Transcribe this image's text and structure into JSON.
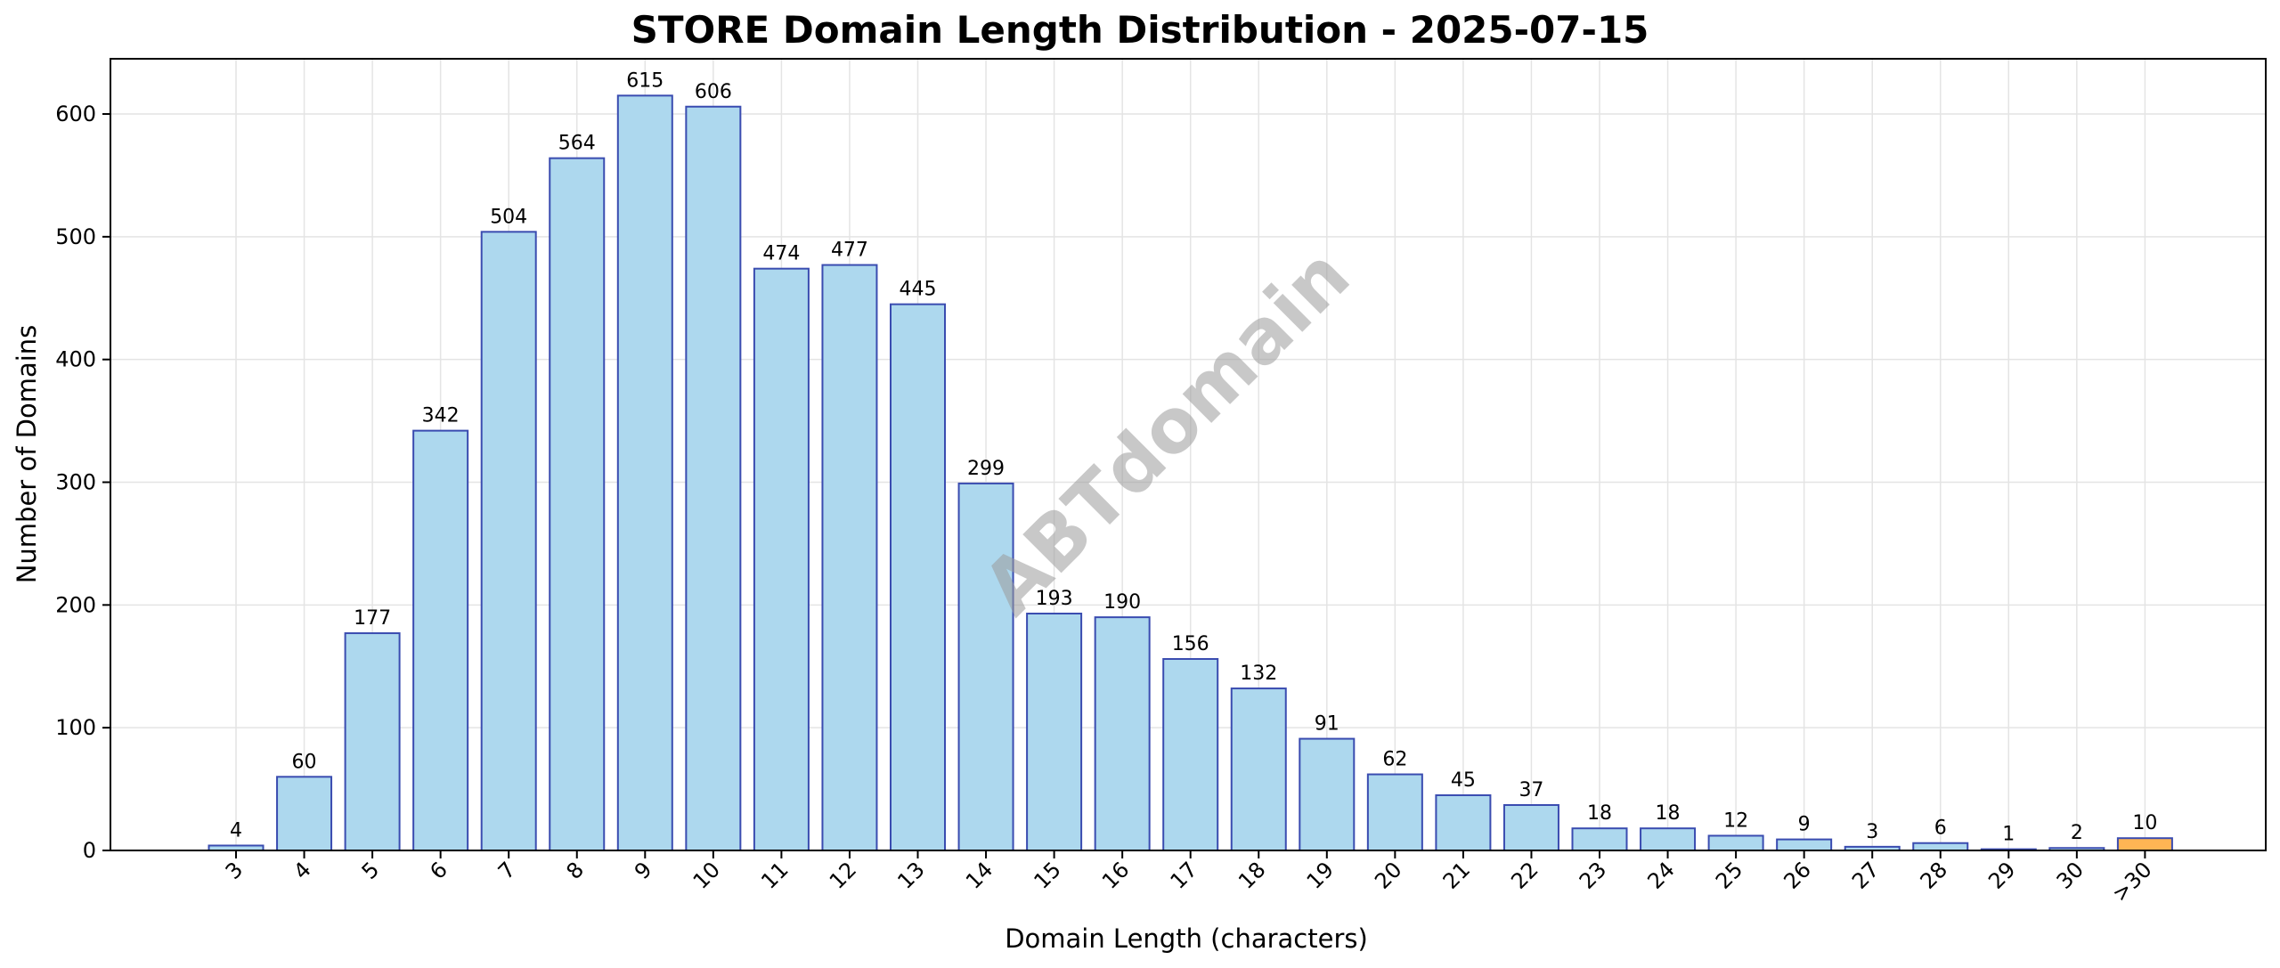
{
  "chart_data": {
    "type": "bar",
    "title": "STORE Domain Length Distribution - 2025-07-15",
    "xlabel": "Domain Length (characters)",
    "ylabel": "Number of Domains",
    "categories": [
      "3",
      "4",
      "5",
      "6",
      "7",
      "8",
      "9",
      "10",
      "11",
      "12",
      "13",
      "14",
      "15",
      "16",
      "17",
      "18",
      "19",
      "20",
      "21",
      "22",
      "23",
      "24",
      "25",
      "26",
      "27",
      "28",
      "29",
      "30",
      ">30"
    ],
    "values": [
      4,
      60,
      177,
      342,
      504,
      564,
      615,
      606,
      474,
      477,
      445,
      299,
      193,
      190,
      156,
      132,
      91,
      62,
      45,
      37,
      18,
      18,
      12,
      9,
      3,
      6,
      1,
      2,
      10
    ],
    "ylim": [
      0,
      645
    ],
    "yticks": [
      0,
      100,
      200,
      300,
      400,
      500,
      600
    ],
    "grid": true,
    "legend": "none",
    "watermark": "ABTdomain",
    "colors": {
      "bar_fill": "#add8ee",
      "bar_edge": "#3a4cb0",
      "overflow_fill": "#ffb554",
      "overflow_edge": "#3a4cb0",
      "grid": "#e4e4e4",
      "axis": "#000000"
    }
  }
}
